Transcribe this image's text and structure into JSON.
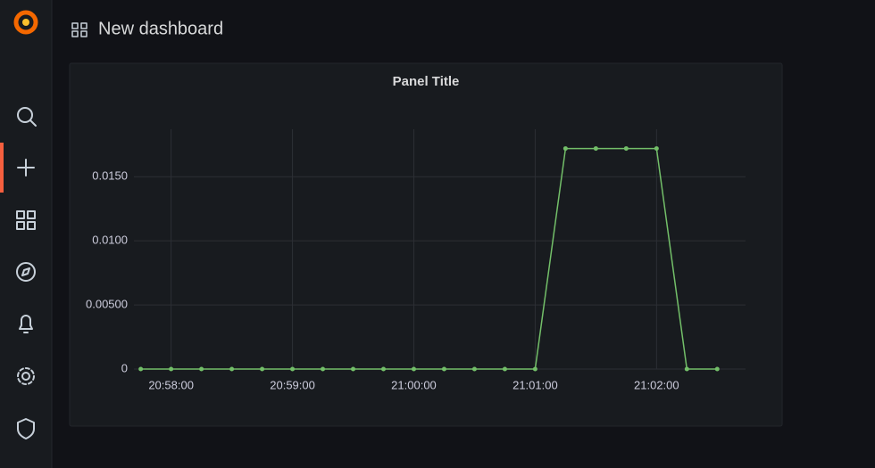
{
  "header": {
    "title": "New dashboard"
  },
  "chart_data": {
    "type": "line",
    "title": "Panel Title",
    "x": [
      "20:57:45",
      "20:58:00",
      "20:58:15",
      "20:58:30",
      "20:58:45",
      "20:59:00",
      "20:59:15",
      "20:59:30",
      "20:59:45",
      "21:00:00",
      "21:00:15",
      "21:00:30",
      "21:00:45",
      "21:01:00",
      "21:01:15",
      "21:01:30",
      "21:01:45",
      "21:02:00",
      "21:02:15",
      "21:02:30"
    ],
    "series": [
      {
        "color": "#73bf69",
        "values": [
          0,
          0,
          0,
          0,
          0,
          0,
          0,
          0,
          0,
          0,
          0,
          0,
          0,
          0,
          0.0172,
          0.0172,
          0.0172,
          0.0172,
          0,
          0
        ]
      }
    ],
    "xlim": [
      "20:57:35",
      "21:02:44"
    ],
    "xticks": [
      "20:58:00",
      "20:59:00",
      "21:00:00",
      "21:01:00",
      "21:02:00"
    ],
    "ylim": [
      0,
      0.0187
    ],
    "yticks": [
      0,
      {
        "value": 0.005,
        "label": "0.00500"
      },
      {
        "value": 0.01,
        "label": "0.0100"
      },
      {
        "value": 0.015,
        "label": "0.0150"
      }
    ],
    "grid": true
  }
}
